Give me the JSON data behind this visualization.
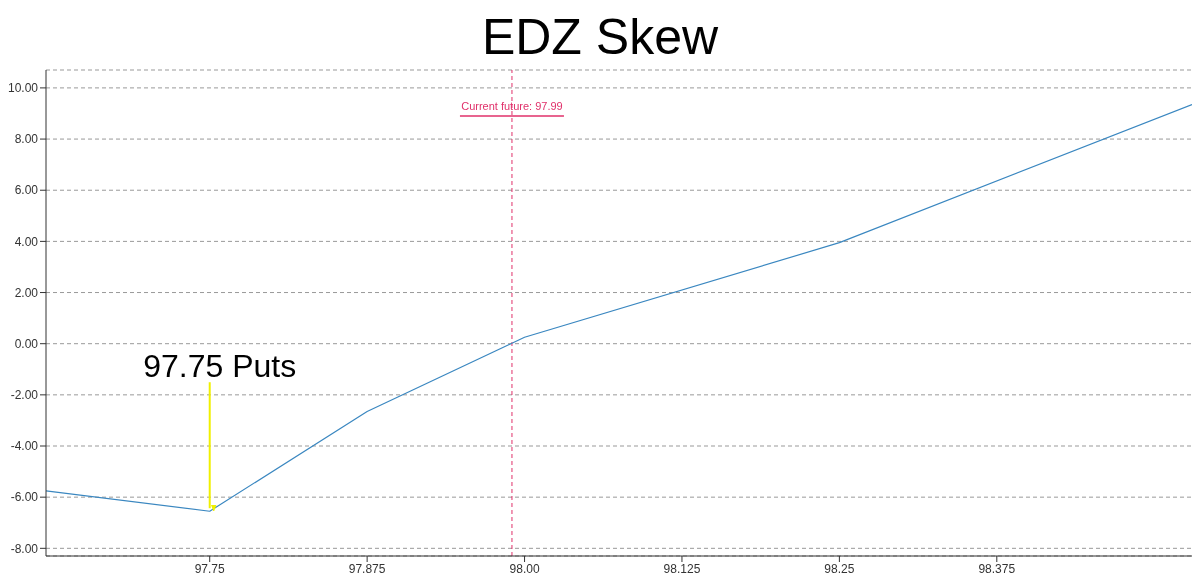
{
  "chart_data": {
    "type": "line",
    "title": "EDZ Skew",
    "x": [
      97.62,
      97.75,
      97.875,
      98.0,
      98.25,
      98.53
    ],
    "series": [
      {
        "color": "#3a87c0",
        "values": [
          -5.75,
          -6.55,
          -2.65,
          0.25,
          3.95,
          9.35
        ]
      }
    ],
    "xlim": [
      97.62,
      98.53
    ],
    "xticks": [
      97.75,
      97.875,
      {
        "value": 98.0,
        "label": "98.00"
      },
      98.125,
      98.25,
      98.375
    ],
    "ylim": [
      -8.3,
      10.7
    ],
    "yticks": [
      {
        "value": -8,
        "label": "-8.00"
      },
      {
        "value": -6,
        "label": "-6.00"
      },
      {
        "value": -4,
        "label": "-4.00"
      },
      {
        "value": -2,
        "label": "-2.00"
      },
      {
        "value": 0,
        "label": "0.00"
      },
      {
        "value": 2,
        "label": "2.00"
      },
      {
        "value": 4,
        "label": "4.00"
      },
      {
        "value": 6,
        "label": "6.00"
      },
      {
        "value": 8,
        "label": "8.00"
      },
      {
        "value": 10,
        "label": "10.00"
      }
    ],
    "grid": "y",
    "marker": "none",
    "line_style": "solid",
    "legend": false,
    "ref_lines": [
      {
        "axis": "x",
        "value": 97.99,
        "label": "Current future: 97.99",
        "color": "#e0306a",
        "line_style": "dashed"
      }
    ],
    "annotations": [
      {
        "text": "97.75 Puts",
        "x": 97.75,
        "y": -6.55
      }
    ]
  }
}
